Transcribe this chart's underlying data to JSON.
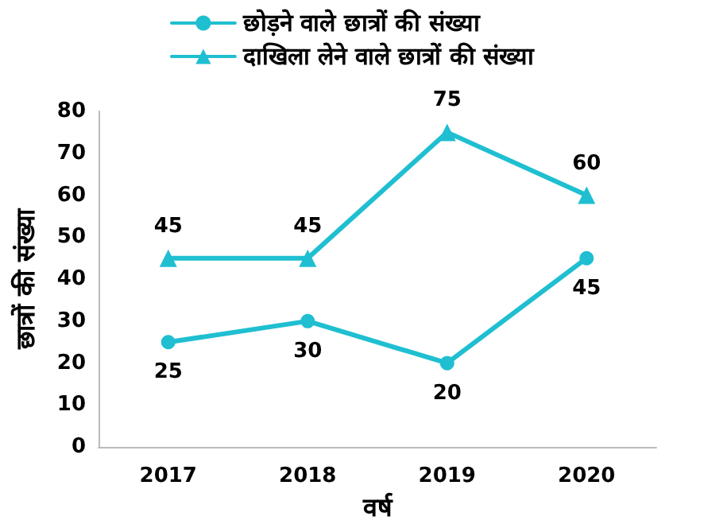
{
  "chart_data": {
    "type": "line",
    "xlabel": "वर्ष",
    "ylabel": "छात्रों की संख्या",
    "categories": [
      "2017",
      "2018",
      "2019",
      "2020"
    ],
    "series": [
      {
        "name": "छोड़ने वाले छात्रों की संख्या",
        "color": "#1fbfd1",
        "marker": "circle",
        "values": [
          25,
          30,
          20,
          45
        ]
      },
      {
        "name": "दाखिला लेने वाले छात्रों की संख्या",
        "color": "#1fbfd1",
        "marker": "triangle",
        "values": [
          45,
          45,
          75,
          60
        ]
      }
    ],
    "ylim": [
      0,
      80
    ],
    "yticks": [
      0,
      10,
      20,
      30,
      40,
      50,
      60,
      70,
      80
    ],
    "grid": false,
    "legend": "top",
    "data_labels": true,
    "line_style": "solid"
  }
}
